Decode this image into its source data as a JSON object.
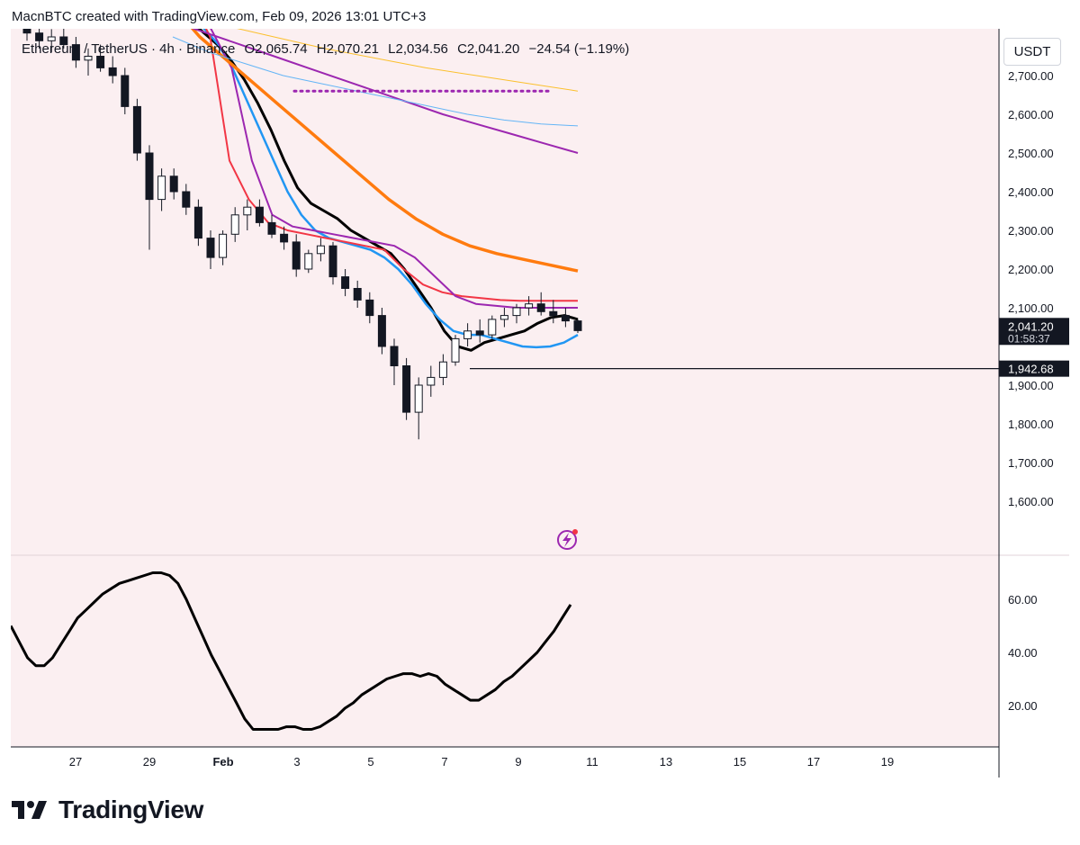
{
  "header": {
    "attribution": "MacnBTC created with TradingView.com, Feb 09, 2026 13:01 UTC+3"
  },
  "legend": {
    "symbol": "Ethereum / TetherUS · 4h · Binance",
    "open": "O2,065.74",
    "high": "H2,070.21",
    "low": "L2,034.56",
    "close": "C2,041.20",
    "change": "−24.54 (−1.19%)"
  },
  "currency": "USDT",
  "footer": {
    "brand": "TradingView"
  },
  "colors": {
    "background": "#fbeff1",
    "candle_body_up": "#ffffff",
    "candle_outline": "#131722",
    "ema_black": "#000000",
    "ema_blue": "#2196f3",
    "ema_red": "#f23645",
    "ema_purple": "#9c27b0",
    "ema_orange": "#ff7b0f",
    "ema_lightblue": "#64b5f6",
    "ema_gold": "#fbc02d",
    "level_line": "#131722",
    "dotted_level": "#9c27b0"
  },
  "chart_data": [
    {
      "type": "candlestick",
      "symbol": "Ethereum / TetherUS",
      "timeframe": "4h",
      "exchange": "Binance",
      "x_tick_labels": [
        "27",
        "29",
        "Feb",
        "3",
        "5",
        "7",
        "9",
        "11",
        "13",
        "15",
        "17",
        "19"
      ],
      "y_tick_labels": [
        "2,700.00",
        "2,600.00",
        "2,500.00",
        "2,400.00",
        "2,300.00",
        "2,200.00",
        "2,100.00",
        "1,900.00",
        "1,800.00",
        "1,700.00",
        "1,600.00"
      ],
      "y_ticks": [
        2700,
        2600,
        2500,
        2400,
        2300,
        2200,
        2100,
        1900,
        1800,
        1700,
        1600
      ],
      "ylim": [
        1550,
        2840
      ],
      "price_label": "2,041.20",
      "countdown_label": "01:58:37",
      "level_label": "1,942.68",
      "level_value": 1942.68,
      "dotted_level_value": 2660,
      "candles_ohlc": [
        [
          2820,
          2850,
          2790,
          2810
        ],
        [
          2810,
          2830,
          2770,
          2790
        ],
        [
          2790,
          2820,
          2760,
          2800
        ],
        [
          2800,
          2830,
          2770,
          2780
        ],
        [
          2780,
          2800,
          2720,
          2740
        ],
        [
          2740,
          2770,
          2700,
          2750
        ],
        [
          2750,
          2780,
          2710,
          2720
        ],
        [
          2720,
          2750,
          2680,
          2700
        ],
        [
          2700,
          2720,
          2600,
          2620
        ],
        [
          2620,
          2640,
          2480,
          2500
        ],
        [
          2500,
          2520,
          2250,
          2380
        ],
        [
          2380,
          2460,
          2350,
          2440
        ],
        [
          2440,
          2460,
          2380,
          2400
        ],
        [
          2400,
          2420,
          2340,
          2360
        ],
        [
          2360,
          2380,
          2260,
          2280
        ],
        [
          2280,
          2300,
          2200,
          2230
        ],
        [
          2230,
          2300,
          2210,
          2290
        ],
        [
          2290,
          2360,
          2270,
          2340
        ],
        [
          2340,
          2380,
          2300,
          2360
        ],
        [
          2360,
          2380,
          2310,
          2320
        ],
        [
          2320,
          2340,
          2280,
          2290
        ],
        [
          2290,
          2310,
          2250,
          2270
        ],
        [
          2270,
          2290,
          2180,
          2200
        ],
        [
          2200,
          2250,
          2190,
          2240
        ],
        [
          2240,
          2280,
          2220,
          2260
        ],
        [
          2260,
          2270,
          2160,
          2180
        ],
        [
          2180,
          2200,
          2130,
          2150
        ],
        [
          2150,
          2170,
          2100,
          2120
        ],
        [
          2120,
          2140,
          2060,
          2080
        ],
        [
          2080,
          2100,
          1980,
          2000
        ],
        [
          2000,
          2020,
          1900,
          1950
        ],
        [
          1950,
          1970,
          1810,
          1830
        ],
        [
          1830,
          1920,
          1760,
          1900
        ],
        [
          1900,
          1950,
          1870,
          1920
        ],
        [
          1920,
          1980,
          1900,
          1960
        ],
        [
          1960,
          2030,
          1950,
          2020
        ],
        [
          2020,
          2060,
          2000,
          2040
        ],
        [
          2040,
          2070,
          2010,
          2030
        ],
        [
          2030,
          2080,
          2020,
          2070
        ],
        [
          2070,
          2100,
          2050,
          2080
        ],
        [
          2080,
          2110,
          2060,
          2100
        ],
        [
          2100,
          2130,
          2080,
          2110
        ],
        [
          2110,
          2140,
          2080,
          2090
        ],
        [
          2090,
          2120,
          2060,
          2080
        ],
        [
          2080,
          2100,
          2050,
          2066
        ],
        [
          2066,
          2070,
          2035,
          2041
        ]
      ],
      "moving_averages": [
        {
          "color_key": "ema_black",
          "width": 3,
          "values": [
            2840,
            2810,
            2780,
            2740,
            2690,
            2630,
            2560,
            2480,
            2410,
            2370,
            2350,
            2330,
            2300,
            2280,
            2260,
            2240,
            2200,
            2150,
            2100,
            2040,
            2000,
            1990,
            2010,
            2020,
            2030,
            2040,
            2060,
            2075,
            2080,
            2070
          ]
        },
        {
          "color_key": "ema_blue",
          "width": 2.5,
          "values": [
            2850,
            2820,
            2780,
            2720,
            2640,
            2560,
            2480,
            2400,
            2340,
            2300,
            2280,
            2270,
            2260,
            2250,
            2230,
            2200,
            2160,
            2110,
            2070,
            2040,
            2030,
            2030,
            2020,
            2010,
            2000,
            1998,
            2000,
            2010,
            2030
          ]
        },
        {
          "color_key": "ema_red",
          "width": 2,
          "values": [
            2900,
            2800,
            2480,
            2380,
            2320,
            2300,
            2290,
            2280,
            2270,
            2260,
            2250,
            2200,
            2160,
            2140,
            2130,
            2125,
            2120,
            2118,
            2118,
            2118,
            2118
          ]
        },
        {
          "color_key": "ema_purple",
          "width": 2,
          "values": [
            2900,
            2820,
            2720,
            2480,
            2340,
            2310,
            2300,
            2290,
            2280,
            2270,
            2260,
            2230,
            2180,
            2130,
            2110,
            2105,
            2100,
            2100,
            2100,
            2100
          ]
        },
        {
          "color_key": "ema_orange",
          "width": 3.5,
          "values": [
            2880,
            2800,
            2740,
            2680,
            2620,
            2560,
            2500,
            2440,
            2380,
            2330,
            2290,
            2260,
            2240,
            2225,
            2210,
            2195
          ]
        },
        {
          "color_key": "ema_purple",
          "width": 2,
          "values": [
            2840,
            2810,
            2780,
            2750,
            2720,
            2690,
            2660,
            2630,
            2600,
            2575,
            2550,
            2525,
            2500
          ]
        },
        {
          "color_key": "ema_lightblue",
          "width": 1,
          "values": [
            2800,
            2760,
            2730,
            2700,
            2680,
            2660,
            2640,
            2620,
            2600,
            2585,
            2575,
            2570
          ]
        },
        {
          "color_key": "ema_gold",
          "width": 1,
          "values": [
            2860,
            2830,
            2800,
            2770,
            2745,
            2720,
            2700,
            2680,
            2660
          ]
        }
      ]
    },
    {
      "type": "line",
      "name": "oscillator",
      "y_tick_labels": [
        "60.00",
        "40.00",
        "20.00"
      ],
      "y_ticks": [
        60,
        40,
        20
      ],
      "ylim": [
        0,
        78
      ],
      "values": [
        50,
        44,
        38,
        35,
        35,
        38,
        43,
        48,
        53,
        56,
        59,
        62,
        64,
        66,
        67,
        68,
        69,
        70,
        70,
        69,
        66,
        60,
        53,
        46,
        39,
        33,
        27,
        21,
        15,
        11,
        11,
        11,
        11,
        12,
        12,
        11,
        11,
        12,
        14,
        16,
        19,
        21,
        24,
        26,
        28,
        30,
        31,
        32,
        32,
        31,
        32,
        31,
        28,
        26,
        24,
        22,
        22,
        24,
        26,
        29,
        31,
        34,
        37,
        40,
        44,
        48,
        53,
        58
      ]
    }
  ]
}
